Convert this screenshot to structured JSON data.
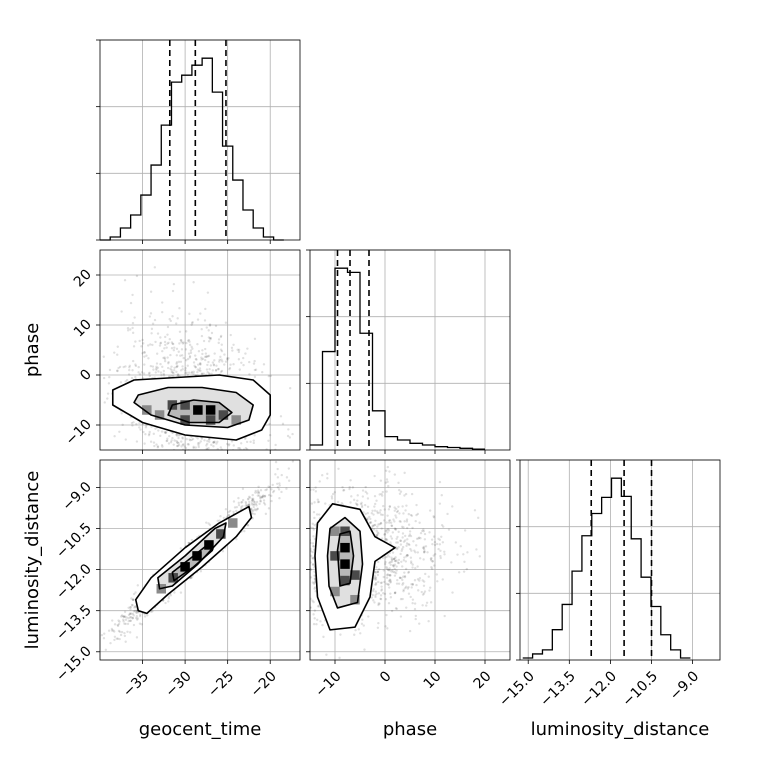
{
  "chart_data": {
    "type": "corner",
    "parameters": [
      "geocent_time",
      "phase",
      "luminosity_distance"
    ],
    "ranges": {
      "geocent_time": [
        -40,
        -16.5
      ],
      "phase": [
        -15,
        25
      ],
      "luminosity_distance": [
        -15.3,
        -8
      ]
    },
    "ticks": {
      "geocent_time": {
        "values": [
          -35,
          -30,
          -25,
          -20
        ],
        "labels": [
          "−35",
          "−30",
          "−25",
          "−20"
        ]
      },
      "phase": {
        "values": [
          -10,
          0,
          10,
          20
        ],
        "labels": [
          "−10",
          "0",
          "10",
          "20"
        ]
      },
      "luminosity_distance": {
        "values": [
          -15,
          -13.5,
          -12,
          -10.5,
          -9
        ],
        "labels": [
          "−15.0",
          "−13.5",
          "−12.0",
          "−10.5",
          "−9.0"
        ]
      }
    },
    "grid": true,
    "histograms": {
      "geocent_time": {
        "bin_edges": [
          -40,
          -38.8,
          -37.6,
          -36.4,
          -35.2,
          -34,
          -32.8,
          -31.6,
          -30.4,
          -29.2,
          -28,
          -26.8,
          -25.6,
          -24.4,
          -23.2,
          -22,
          -20.8,
          -19.6,
          -18.4
        ],
        "counts": [
          0,
          3,
          12,
          25,
          45,
          75,
          115,
          158,
          165,
          175,
          182,
          148,
          94,
          60,
          30,
          12,
          3,
          0
        ],
        "quantiles": [
          -31.8,
          -28.8,
          -25.2
        ]
      },
      "phase": {
        "bin_edges": [
          -15,
          -12.5,
          -10,
          -7.5,
          -5,
          -2.5,
          0,
          2.5,
          5,
          7.5,
          10,
          12.5,
          15,
          17.5,
          20
        ],
        "counts": [
          6,
          118,
          218,
          213,
          140,
          47,
          16,
          12,
          8,
          6,
          4,
          3,
          2,
          1
        ],
        "quantiles": [
          -9.5,
          -7.0,
          -3.2
        ]
      },
      "luminosity_distance": {
        "bin_edges": [
          -15.2,
          -14.84,
          -14.48,
          -14.12,
          -13.76,
          -13.4,
          -13.04,
          -12.68,
          -12.32,
          -11.96,
          -11.6,
          -11.24,
          -10.88,
          -10.52,
          -10.16,
          -9.8,
          -9.44,
          -9.08
        ],
        "counts": [
          2,
          6,
          10,
          30,
          55,
          88,
          123,
          145,
          161,
          180,
          162,
          120,
          82,
          53,
          25,
          10,
          2
        ],
        "quantiles": [
          -12.7,
          -11.5,
          -10.5
        ]
      }
    },
    "pairs": [
      {
        "x": "geocent_time",
        "y": "phase",
        "mean": [
          -29,
          -6
        ],
        "sd": [
          4.2,
          8
        ],
        "corr": -0.25,
        "contours": [
          [
            [
              -38.5,
              -3
            ],
            [
              -36,
              -1
            ],
            [
              -31,
              -0.5
            ],
            [
              -26,
              0
            ],
            [
              -22,
              -1
            ],
            [
              -20,
              -4
            ],
            [
              -20,
              -8
            ],
            [
              -21,
              -11
            ],
            [
              -24,
              -13
            ],
            [
              -30,
              -12
            ],
            [
              -35,
              -9.5
            ],
            [
              -38.5,
              -6
            ]
          ],
          [
            [
              -35.5,
              -4
            ],
            [
              -32,
              -2.5
            ],
            [
              -28,
              -2.5
            ],
            [
              -24,
              -3.5
            ],
            [
              -22,
              -6
            ],
            [
              -22.5,
              -9
            ],
            [
              -25,
              -10.5
            ],
            [
              -30,
              -10
            ],
            [
              -34,
              -8
            ],
            [
              -36,
              -5.5
            ]
          ],
          [
            [
              -31.5,
              -6
            ],
            [
              -29,
              -5
            ],
            [
              -26,
              -5.5
            ],
            [
              -24.5,
              -7.5
            ],
            [
              -26,
              -9.5
            ],
            [
              -29.5,
              -9.5
            ],
            [
              -32,
              -8
            ]
          ]
        ],
        "density_cells": [
          [
            -31.5,
            -6,
            2
          ],
          [
            -30,
            -6,
            2
          ],
          [
            -28.5,
            -7,
            1
          ],
          [
            -27,
            -7,
            1
          ],
          [
            -25.5,
            -8,
            2
          ],
          [
            -30,
            -9,
            2
          ],
          [
            -27,
            -9,
            2
          ],
          [
            -33,
            -8,
            3
          ],
          [
            -24,
            -9,
            3
          ],
          [
            -34.5,
            -7,
            3
          ]
        ]
      },
      {
        "x": "geocent_time",
        "y": "luminosity_distance",
        "mean": [
          -29,
          -11.6
        ],
        "sd": [
          4.2,
          1.2
        ],
        "corr": 0.97,
        "contours": [
          [
            [
              -35.5,
              -13.5
            ],
            [
              -35.8,
              -13.1
            ],
            [
              -34,
              -12.3
            ],
            [
              -30,
              -11.2
            ],
            [
              -26,
              -10.3
            ],
            [
              -22.5,
              -9.7
            ],
            [
              -22.2,
              -10.1
            ],
            [
              -24,
              -10.8
            ],
            [
              -28,
              -11.9
            ],
            [
              -32,
              -12.9
            ],
            [
              -34.5,
              -13.6
            ]
          ],
          [
            [
              -33,
              -12.7
            ],
            [
              -33.2,
              -12.3
            ],
            [
              -30,
              -11.5
            ],
            [
              -26.5,
              -10.5
            ],
            [
              -25.2,
              -10.3
            ],
            [
              -25.5,
              -10.8
            ],
            [
              -28.5,
              -11.8
            ],
            [
              -31.5,
              -12.6
            ]
          ],
          [
            [
              -31.3,
              -12.4
            ],
            [
              -31.5,
              -12.1
            ],
            [
              -29,
              -11.5
            ],
            [
              -27,
              -11.0
            ],
            [
              -26.8,
              -11.3
            ],
            [
              -29,
              -11.9
            ]
          ]
        ],
        "density_cells": [
          [
            -27.2,
            -11.1,
            1
          ],
          [
            -28.6,
            -11.5,
            1
          ],
          [
            -30,
            -11.9,
            1
          ],
          [
            -31.4,
            -12.3,
            2
          ],
          [
            -25.8,
            -10.7,
            2
          ],
          [
            -32.8,
            -12.7,
            3
          ],
          [
            -24.4,
            -10.3,
            3
          ]
        ]
      },
      {
        "x": "phase",
        "y": "luminosity_distance",
        "mean": [
          -6,
          -11.5
        ],
        "sd": [
          8,
          1.2
        ],
        "corr": 0.05,
        "contours": [
          [
            [
              -14,
              -11.5
            ],
            [
              -13.5,
              -10.3
            ],
            [
              -10.5,
              -9.6
            ],
            [
              -5,
              -9.8
            ],
            [
              -2,
              -10.8
            ],
            [
              2,
              -11.2
            ],
            [
              -2,
              -11.7
            ],
            [
              -3,
              -13
            ],
            [
              -6,
              -14.1
            ],
            [
              -11,
              -14.2
            ],
            [
              -13.5,
              -13
            ]
          ],
          [
            [
              -11.5,
              -11.5
            ],
            [
              -11,
              -10.5
            ],
            [
              -8,
              -10.1
            ],
            [
              -5,
              -10.6
            ],
            [
              -4.5,
              -11.8
            ],
            [
              -5.5,
              -13.2
            ],
            [
              -9.5,
              -13.4
            ],
            [
              -11.2,
              -12.6
            ]
          ],
          [
            [
              -9.5,
              -11.3
            ],
            [
              -9,
              -10.7
            ],
            [
              -7,
              -10.6
            ],
            [
              -6.3,
              -11.5
            ],
            [
              -7,
              -12.5
            ],
            [
              -9,
              -12.6
            ]
          ]
        ],
        "density_cells": [
          [
            -8,
            -11.2,
            1
          ],
          [
            -8,
            -11.8,
            1
          ],
          [
            -8,
            -12.4,
            2
          ],
          [
            -8,
            -10.6,
            2
          ],
          [
            -10,
            -11.5,
            2
          ],
          [
            -6,
            -12.2,
            2
          ],
          [
            -10,
            -12.8,
            3
          ],
          [
            -6,
            -13.1,
            3
          ],
          [
            -10,
            -10.6,
            3
          ]
        ]
      }
    ]
  }
}
